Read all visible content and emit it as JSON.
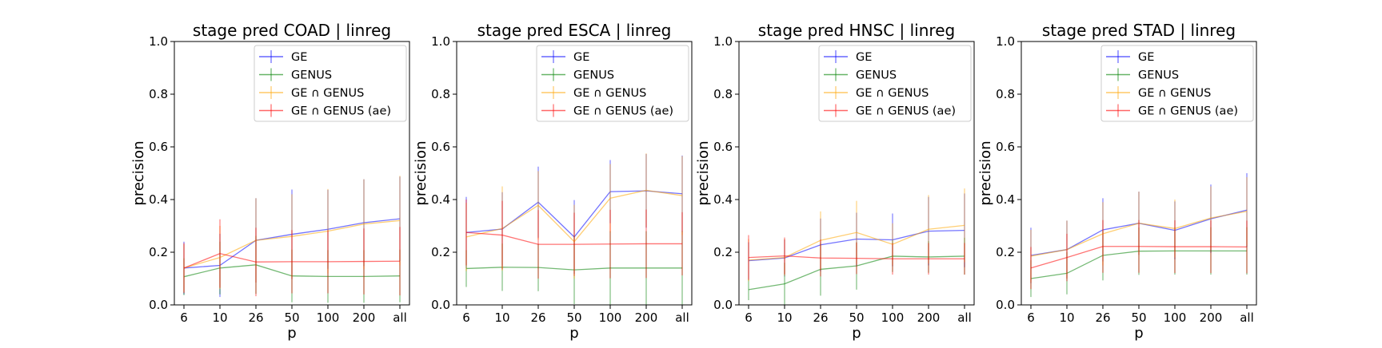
{
  "chart_data": [
    {
      "type": "line",
      "title": "stage pred COAD | linreg",
      "xlabel": "p",
      "ylabel": "precision",
      "categories": [
        "6",
        "10",
        "26",
        "50",
        "100",
        "200",
        "all"
      ],
      "ylim": [
        0,
        1
      ],
      "yticks": [
        "0.0",
        "0.2",
        "0.4",
        "0.6",
        "0.8",
        "1.0"
      ],
      "grid": false,
      "legend_loc": "top-right",
      "series": [
        {
          "name": "GE",
          "color": "#0000ff",
          "values": [
            0.14,
            0.15,
            0.245,
            0.268,
            0.287,
            0.312,
            0.327
          ],
          "err": [
            0.1,
            0.12,
            0.16,
            0.17,
            0.15,
            0.165,
            0.16
          ]
        },
        {
          "name": "GENUS",
          "color": "#008000",
          "values": [
            0.107,
            0.14,
            0.152,
            0.11,
            0.108,
            0.108,
            0.11
          ],
          "err": [
            0.07,
            0.1,
            0.11,
            0.1,
            0.1,
            0.1,
            0.1
          ]
        },
        {
          "name": "GE ∩ GENUS",
          "color": "#ffa500",
          "values": [
            0.14,
            0.18,
            0.245,
            0.26,
            0.28,
            0.307,
            0.32
          ],
          "err": [
            0.09,
            0.12,
            0.16,
            0.16,
            0.16,
            0.17,
            0.17
          ]
        },
        {
          "name": "GE ∩ GENUS (ae)",
          "color": "#ff0000",
          "values": [
            0.14,
            0.195,
            0.163,
            0.164,
            0.164,
            0.165,
            0.166
          ],
          "err": [
            0.095,
            0.13,
            0.13,
            0.12,
            0.12,
            0.125,
            0.13
          ]
        }
      ]
    },
    {
      "type": "line",
      "title": "stage pred ESCA | linreg",
      "xlabel": "p",
      "ylabel": "precision",
      "categories": [
        "6",
        "10",
        "26",
        "50",
        "100",
        "200",
        "all"
      ],
      "ylim": [
        0,
        1
      ],
      "yticks": [
        "0.0",
        "0.2",
        "0.4",
        "0.6",
        "0.8",
        "1.0"
      ],
      "grid": false,
      "legend_loc": "top-right",
      "series": [
        {
          "name": "GE",
          "color": "#0000ff",
          "values": [
            0.275,
            0.288,
            0.39,
            0.258,
            0.43,
            0.433,
            0.422
          ],
          "err": [
            0.135,
            0.14,
            0.135,
            0.14,
            0.12,
            0.14,
            0.145
          ]
        },
        {
          "name": "GENUS",
          "color": "#008000",
          "values": [
            0.138,
            0.143,
            0.142,
            0.133,
            0.14,
            0.14,
            0.14
          ],
          "err": [
            0.07,
            0.09,
            0.09,
            0.13,
            0.14,
            0.14,
            0.14
          ]
        },
        {
          "name": "GE ∩ GENUS",
          "color": "#ffa500",
          "values": [
            0.258,
            0.29,
            0.378,
            0.24,
            0.405,
            0.435,
            0.415
          ],
          "err": [
            0.13,
            0.16,
            0.13,
            0.14,
            0.13,
            0.14,
            0.15
          ]
        },
        {
          "name": "GE ∩ GENUS (ae)",
          "color": "#ff0000",
          "values": [
            0.275,
            0.265,
            0.23,
            0.23,
            0.231,
            0.232,
            0.232
          ],
          "err": [
            0.125,
            0.13,
            0.13,
            0.12,
            0.13,
            0.13,
            0.12
          ]
        }
      ]
    },
    {
      "type": "line",
      "title": "stage pred HNSC | linreg",
      "xlabel": "p",
      "ylabel": "precision",
      "categories": [
        "6",
        "10",
        "26",
        "50",
        "100",
        "200",
        "all"
      ],
      "ylim": [
        0,
        1
      ],
      "yticks": [
        "0.0",
        "0.2",
        "0.4",
        "0.6",
        "0.8",
        "1.0"
      ],
      "grid": false,
      "legend_loc": "top-right",
      "series": [
        {
          "name": "GE",
          "color": "#0000ff",
          "values": [
            0.168,
            0.178,
            0.228,
            0.25,
            0.247,
            0.28,
            0.283
          ],
          "err": [
            0.07,
            0.07,
            0.1,
            0.1,
            0.1,
            0.13,
            0.14
          ]
        },
        {
          "name": "GENUS",
          "color": "#008000",
          "values": [
            0.058,
            0.08,
            0.135,
            0.148,
            0.185,
            0.182,
            0.185
          ],
          "err": [
            0.04,
            0.08,
            0.1,
            0.09,
            0.06,
            0.06,
            0.07
          ]
        },
        {
          "name": "GE ∩ GENUS",
          "color": "#ffa500",
          "values": [
            0.17,
            0.18,
            0.245,
            0.275,
            0.23,
            0.287,
            0.302
          ],
          "err": [
            0.08,
            0.07,
            0.11,
            0.12,
            0.08,
            0.13,
            0.14
          ]
        },
        {
          "name": "GE ∩ GENUS (ae)",
          "color": "#ff0000",
          "values": [
            0.18,
            0.186,
            0.178,
            0.177,
            0.175,
            0.175,
            0.175
          ],
          "err": [
            0.085,
            0.07,
            0.07,
            0.06,
            0.06,
            0.06,
            0.06
          ]
        }
      ]
    },
    {
      "type": "line",
      "title": "stage pred STAD | linreg",
      "xlabel": "p",
      "ylabel": "precision",
      "categories": [
        "6",
        "10",
        "26",
        "50",
        "100",
        "200",
        "all"
      ],
      "ylim": [
        0,
        1
      ],
      "yticks": [
        "0.0",
        "0.2",
        "0.4",
        "0.6",
        "0.8",
        "1.0"
      ],
      "grid": false,
      "legend_loc": "top-right",
      "series": [
        {
          "name": "GE",
          "color": "#0000ff",
          "values": [
            0.188,
            0.21,
            0.285,
            0.31,
            0.283,
            0.327,
            0.36
          ],
          "err": [
            0.105,
            0.11,
            0.12,
            0.12,
            0.11,
            0.13,
            0.14
          ]
        },
        {
          "name": "GENUS",
          "color": "#008000",
          "values": [
            0.1,
            0.12,
            0.188,
            0.204,
            0.205,
            0.205,
            0.205
          ],
          "err": [
            0.07,
            0.08,
            0.095,
            0.09,
            0.09,
            0.09,
            0.09
          ]
        },
        {
          "name": "GE ∩ GENUS",
          "color": "#ffa500",
          "values": [
            0.185,
            0.21,
            0.27,
            0.31,
            0.29,
            0.33,
            0.355
          ],
          "err": [
            0.1,
            0.11,
            0.12,
            0.12,
            0.11,
            0.12,
            0.13
          ]
        },
        {
          "name": "GE ∩ GENUS (ae)",
          "color": "#ff0000",
          "values": [
            0.14,
            0.18,
            0.222,
            0.222,
            0.221,
            0.221,
            0.22
          ],
          "err": [
            0.08,
            0.09,
            0.1,
            0.1,
            0.1,
            0.1,
            0.1
          ]
        }
      ]
    }
  ]
}
